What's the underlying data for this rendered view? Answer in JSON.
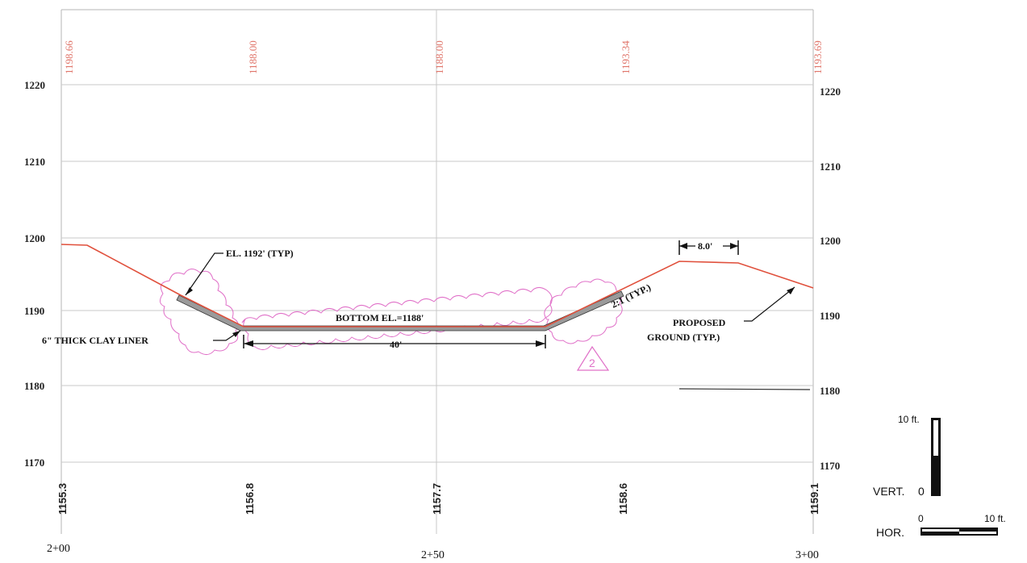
{
  "elevation_axis": {
    "left_labels": [
      "1220",
      "1210",
      "1200",
      "1190",
      "1180",
      "1170"
    ],
    "right_labels": [
      "1220",
      "1210",
      "1200",
      "1190",
      "1180",
      "1170"
    ]
  },
  "proposed_elevations": [
    "1198.66",
    "1188.00",
    "1188.00",
    "1193.34",
    "1193.69"
  ],
  "existing_elevations": [
    "1155.3",
    "1156.8",
    "1157.7",
    "1158.6",
    "1159.1"
  ],
  "stations": [
    "2+00",
    "2+50",
    "3+00"
  ],
  "notes": {
    "el_typ": "EL. 1192' (TYP)",
    "clay_liner": "6\" THICK CLAY LINER",
    "bottom_el": "BOTTOM EL.=1188'",
    "bottom_width": "40'",
    "slope": "2:1 (TYP.)",
    "berm_width": "8.0'",
    "proposed_ground_line1": "PROPOSED",
    "proposed_ground_line2": "GROUND (TYP.)"
  },
  "revision": {
    "number": "2",
    "color": "#e070c8"
  },
  "scale": {
    "vert_top": "10 ft.",
    "vert_label": "VERT.",
    "vert_zero": "0",
    "hor_label": "HOR.",
    "hor_zero": "0",
    "hor_end": "10 ft."
  },
  "colors": {
    "ground_line": "#e0503c",
    "elevation_text": "#e0756a",
    "revision_cloud": "#e070c8"
  }
}
